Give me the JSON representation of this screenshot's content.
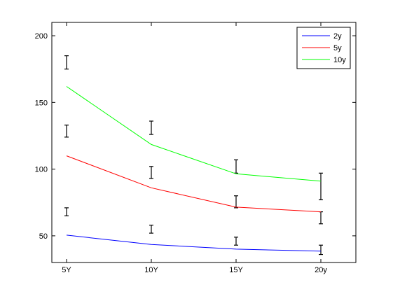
{
  "chart_data": {
    "type": "line",
    "title": "",
    "xlabel": "",
    "ylabel": "",
    "categories": [
      "5Y",
      "10Y",
      "15Y",
      "20y"
    ],
    "ylim": [
      30,
      210
    ],
    "yticks": [
      50,
      100,
      150,
      200
    ],
    "grid": false,
    "legend_position": "top-right",
    "series": [
      {
        "name": "2y",
        "color": "#0000ff",
        "values": [
          50.5,
          43.5,
          40,
          38.5
        ]
      },
      {
        "name": "5y",
        "color": "#ff0000",
        "values": [
          110,
          86,
          71.5,
          68
        ]
      },
      {
        "name": "10y",
        "color": "#00ff00",
        "values": [
          162,
          118.5,
          96.5,
          91
        ]
      }
    ],
    "error_bars": [
      {
        "category": "5Y",
        "low": 65,
        "high": 71
      },
      {
        "category": "5Y",
        "low": 124,
        "high": 133
      },
      {
        "category": "5Y",
        "low": 175,
        "high": 185
      },
      {
        "category": "10Y",
        "low": 52,
        "high": 58
      },
      {
        "category": "10Y",
        "low": 93,
        "high": 102
      },
      {
        "category": "10Y",
        "low": 126,
        "high": 136
      },
      {
        "category": "15Y",
        "low": 43,
        "high": 49
      },
      {
        "category": "15Y",
        "low": 71,
        "high": 80
      },
      {
        "category": "15Y",
        "low": 97,
        "high": 107
      },
      {
        "category": "20y",
        "low": 36,
        "high": 43
      },
      {
        "category": "20y",
        "low": 59,
        "high": 68
      },
      {
        "category": "20y",
        "low": 77,
        "high": 97
      }
    ]
  }
}
